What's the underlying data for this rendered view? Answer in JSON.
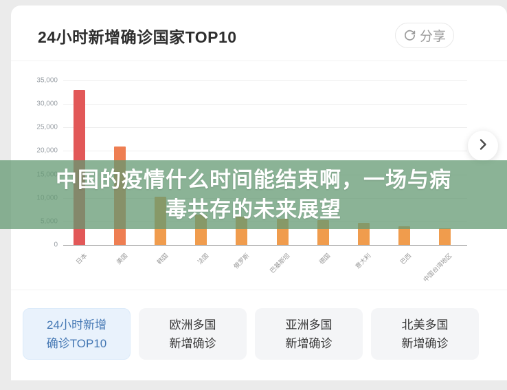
{
  "header": {
    "title": "24小时新增确诊国家TOP10",
    "share_label": "分享"
  },
  "icons": {
    "share": "circular-arrow-share-icon",
    "carousel_next": "chevron-right-icon"
  },
  "overlay_banner": {
    "line1": "中国的疫情什么时间能结束啊，一场与病",
    "line2": "毒共存的未来展望"
  },
  "chart_data": {
    "type": "bar",
    "title": "24小时新增确诊国家TOP10",
    "categories": [
      "日本",
      "美国",
      "韩国",
      "法国",
      "俄罗斯",
      "巴基斯坦",
      "德国",
      "意大利",
      "巴西",
      "中国台湾地区"
    ],
    "values": [
      33000,
      21000,
      10200,
      6500,
      6000,
      5600,
      5200,
      4700,
      4000,
      3500
    ],
    "xlabel": "",
    "ylabel": "",
    "ylim": [
      0,
      35000
    ],
    "ytick_interval": 5000,
    "grid": true,
    "legend_position": "none",
    "bar_colors": [
      "#e25858",
      "#ee7e52",
      "#f09c4d",
      "#f09c4d",
      "#f09c4d",
      "#f09c4d",
      "#f09c4d",
      "#f09c4d",
      "#f09c4d",
      "#f09c4d"
    ]
  },
  "tabs": [
    {
      "line1": "24小时新增",
      "line2": "确诊TOP10",
      "active": true
    },
    {
      "line1": "欧洲多国",
      "line2": "新增确诊",
      "active": false
    },
    {
      "line1": "亚洲多国",
      "line2": "新增确诊",
      "active": false
    },
    {
      "line1": "北美多国",
      "line2": "新增确诊",
      "active": false
    }
  ],
  "colors": {
    "page_background": "#ebebeb",
    "card_background": "#ffffff",
    "banner_overlay": "rgba(98,152,113,0.74)",
    "bar_red": "#e25858",
    "bar_orange_red": "#ee7e52",
    "bar_orange": "#f09c4d",
    "active_tab_bg": "#e9f2fc",
    "active_tab_text": "#4477b3",
    "inactive_tab_bg": "#f4f5f7",
    "axis_text": "#9aa0a6"
  }
}
